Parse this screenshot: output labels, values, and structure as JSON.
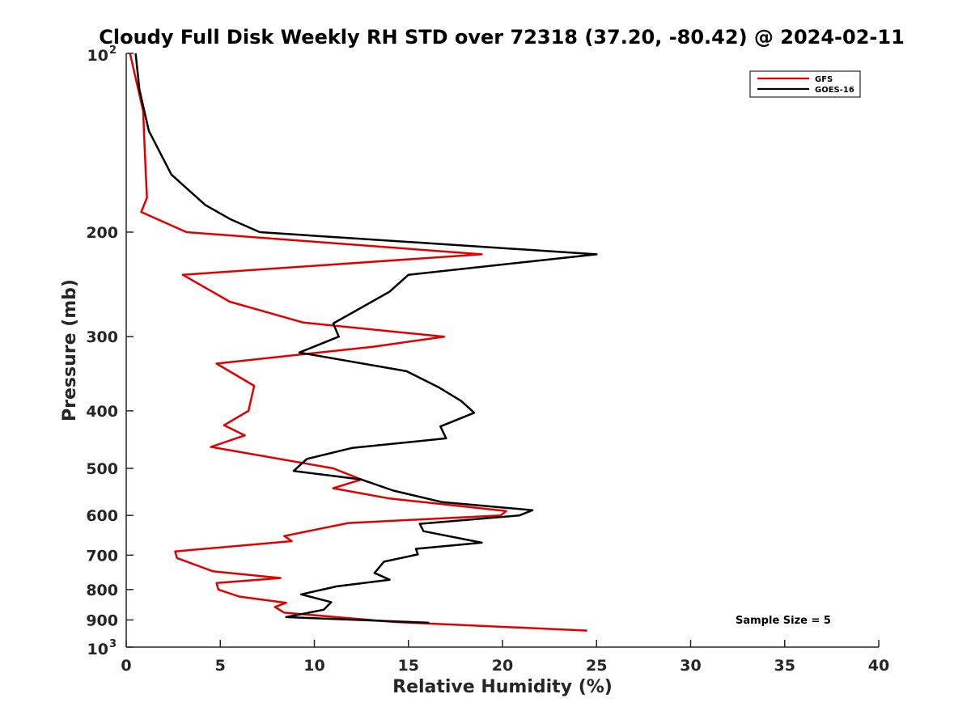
{
  "chart_data": {
    "type": "line",
    "title": "Cloudy Full Disk Weekly RH STD over 72318 (37.20, -80.42) @ 2024-02-11",
    "xlabel": "Relative Humidity (%)",
    "ylabel": "Pressure (mb)",
    "xlim": [
      0,
      40
    ],
    "ylim": [
      100,
      1000
    ],
    "y_scale": "log",
    "y_reversed": true,
    "grid": false,
    "legend_position": "top-right",
    "x_ticks": [
      "0",
      "5",
      "10",
      "15",
      "20",
      "25",
      "30",
      "35",
      "40"
    ],
    "y_ticks": [
      {
        "value": 100,
        "base": "10",
        "exp": "2"
      },
      {
        "value": 200,
        "label": "200"
      },
      {
        "value": 300,
        "label": "300"
      },
      {
        "value": 400,
        "label": "400"
      },
      {
        "value": 500,
        "label": "500"
      },
      {
        "value": 600,
        "label": "600"
      },
      {
        "value": 700,
        "label": "700"
      },
      {
        "value": 800,
        "label": "800"
      },
      {
        "value": 900,
        "label": "900"
      },
      {
        "value": 1000,
        "base": "10",
        "exp": "3"
      }
    ],
    "annotation": "Sample Size = 5",
    "series": [
      {
        "name": "GFS",
        "color": "#e00000",
        "points": [
          [
            0.2,
            100
          ],
          [
            0.5,
            110
          ],
          [
            0.9,
            125
          ],
          [
            1.0,
            150
          ],
          [
            1.1,
            175
          ],
          [
            0.8,
            185
          ],
          [
            3.2,
            200
          ],
          [
            18.9,
            218
          ],
          [
            3.0,
            236
          ],
          [
            5.5,
            262
          ],
          [
            9.4,
            284
          ],
          [
            16.9,
            300
          ],
          [
            13.1,
            312
          ],
          [
            4.8,
            333
          ],
          [
            6.8,
            363
          ],
          [
            6.5,
            400
          ],
          [
            5.2,
            423
          ],
          [
            6.3,
            440
          ],
          [
            4.5,
            460
          ],
          [
            11.0,
            500
          ],
          [
            12.5,
            522
          ],
          [
            11.0,
            540
          ],
          [
            14.0,
            562
          ],
          [
            20.2,
            590
          ],
          [
            19.9,
            600
          ],
          [
            11.8,
            618
          ],
          [
            8.4,
            650
          ],
          [
            8.8,
            663
          ],
          [
            2.6,
            690
          ],
          [
            2.7,
            708
          ],
          [
            4.6,
            745
          ],
          [
            8.2,
            765
          ],
          [
            4.8,
            780
          ],
          [
            4.9,
            800
          ],
          [
            6.0,
            822
          ],
          [
            8.5,
            842
          ],
          [
            7.9,
            856
          ],
          [
            8.4,
            875
          ],
          [
            14.2,
            907
          ],
          [
            24.5,
            938
          ]
        ]
      },
      {
        "name": "GOES-16",
        "color": "#000000",
        "points": [
          [
            0.5,
            100
          ],
          [
            0.7,
            115
          ],
          [
            1.2,
            135
          ],
          [
            2.4,
            160
          ],
          [
            4.2,
            180
          ],
          [
            5.5,
            190
          ],
          [
            7.1,
            200
          ],
          [
            25.0,
            218
          ],
          [
            15.0,
            236
          ],
          [
            14.0,
            252
          ],
          [
            11.0,
            285
          ],
          [
            11.3,
            300
          ],
          [
            9.2,
            319
          ],
          [
            14.9,
            343
          ],
          [
            16.6,
            365
          ],
          [
            17.8,
            385
          ],
          [
            18.5,
            403
          ],
          [
            16.7,
            425
          ],
          [
            17.0,
            445
          ],
          [
            12.0,
            462
          ],
          [
            9.6,
            482
          ],
          [
            8.9,
            505
          ],
          [
            12.5,
            522
          ],
          [
            14.2,
            545
          ],
          [
            16.8,
            570
          ],
          [
            21.6,
            588
          ],
          [
            20.9,
            600
          ],
          [
            15.6,
            620
          ],
          [
            15.8,
            638
          ],
          [
            18.9,
            667
          ],
          [
            15.4,
            683
          ],
          [
            15.5,
            698
          ],
          [
            13.7,
            718
          ],
          [
            13.2,
            750
          ],
          [
            14.0,
            770
          ],
          [
            11.2,
            790
          ],
          [
            9.3,
            815
          ],
          [
            10.9,
            840
          ],
          [
            10.5,
            865
          ],
          [
            8.5,
            890
          ],
          [
            16.1,
            910
          ]
        ]
      }
    ]
  }
}
